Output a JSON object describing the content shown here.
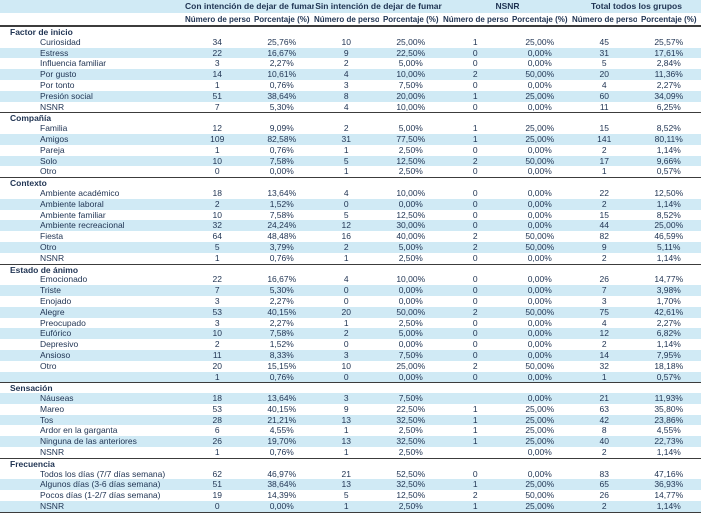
{
  "table": {
    "colors": {
      "band": "#d0eaf5",
      "text": "#1f3352",
      "border": "#3c3c3c"
    },
    "groups": [
      {
        "label": "",
        "span": 1
      },
      {
        "label": "Con intención de dejar de fumar",
        "span": 2
      },
      {
        "label": "Sin intención de dejar de fumar",
        "span": 2
      },
      {
        "label": "NSNR",
        "span": 2
      },
      {
        "label": "Total todos los grupos",
        "span": 2
      }
    ],
    "subheaders": [
      "Número de personas",
      "Porcentaje (%)",
      "Número de personas",
      "Porcentaje (%)",
      "Número de personas",
      "Porcentaje (%)",
      "Número de personas",
      "Porcentaje (%)"
    ],
    "sections": [
      {
        "title": "Factor de inicio",
        "first_row_banded": false,
        "rows": [
          {
            "label": "Curiosidad",
            "values": [
              "34",
              "25,76%",
              "10",
              "25,00%",
              "1",
              "25,00%",
              "45",
              "25,57%"
            ]
          },
          {
            "label": "Estress",
            "values": [
              "22",
              "16,67%",
              "9",
              "22,50%",
              "0",
              "0,00%",
              "31",
              "17,61%"
            ]
          },
          {
            "label": "Influencia familiar",
            "values": [
              "3",
              "2,27%",
              "2",
              "5,00%",
              "0",
              "0,00%",
              "5",
              "2,84%"
            ]
          },
          {
            "label": "Por gusto",
            "values": [
              "14",
              "10,61%",
              "4",
              "10,00%",
              "2",
              "50,00%",
              "20",
              "11,36%"
            ]
          },
          {
            "label": "Por tonto",
            "values": [
              "1",
              "0,76%",
              "3",
              "7,50%",
              "0",
              "0,00%",
              "4",
              "2,27%"
            ]
          },
          {
            "label": "Presión social",
            "values": [
              "51",
              "38,64%",
              "8",
              "20,00%",
              "1",
              "25,00%",
              "60",
              "34,09%"
            ]
          },
          {
            "label": "NSNR",
            "values": [
              "7",
              "5,30%",
              "4",
              "10,00%",
              "0",
              "0,00%",
              "11",
              "6,25%"
            ]
          }
        ]
      },
      {
        "title": "Compañía",
        "first_row_banded": false,
        "rows": [
          {
            "label": "Familia",
            "values": [
              "12",
              "9,09%",
              "2",
              "5,00%",
              "1",
              "25,00%",
              "15",
              "8,52%"
            ]
          },
          {
            "label": "Amigos",
            "values": [
              "109",
              "82,58%",
              "31",
              "77,50%",
              "1",
              "25,00%",
              "141",
              "80,11%"
            ]
          },
          {
            "label": "Pareja",
            "values": [
              "1",
              "0,76%",
              "1",
              "2,50%",
              "0",
              "0,00%",
              "2",
              "1,14%"
            ]
          },
          {
            "label": "Solo",
            "values": [
              "10",
              "7,58%",
              "5",
              "12,50%",
              "2",
              "50,00%",
              "17",
              "9,66%"
            ]
          },
          {
            "label": "Otro",
            "values": [
              "0",
              "0,00%",
              "1",
              "2,50%",
              "0",
              "0,00%",
              "1",
              "0,57%"
            ]
          }
        ]
      },
      {
        "title": "Contexto",
        "first_row_banded": false,
        "rows": [
          {
            "label": "Ambiente académico",
            "values": [
              "18",
              "13,64%",
              "4",
              "10,00%",
              "0",
              "0,00%",
              "22",
              "12,50%"
            ]
          },
          {
            "label": "Ambiente laboral",
            "values": [
              "2",
              "1,52%",
              "0",
              "0,00%",
              "0",
              "0,00%",
              "2",
              "1,14%"
            ]
          },
          {
            "label": "Ambiente familiar",
            "values": [
              "10",
              "7,58%",
              "5",
              "12,50%",
              "0",
              "0,00%",
              "15",
              "8,52%"
            ]
          },
          {
            "label": "Ambiente recreacional",
            "values": [
              "32",
              "24,24%",
              "12",
              "30,00%",
              "0",
              "0,00%",
              "44",
              "25,00%"
            ]
          },
          {
            "label": "Fiesta",
            "values": [
              "64",
              "48,48%",
              "16",
              "40,00%",
              "2",
              "50,00%",
              "82",
              "46,59%"
            ]
          },
          {
            "label": "Otro",
            "values": [
              "5",
              "3,79%",
              "2",
              "5,00%",
              "2",
              "50,00%",
              "9",
              "5,11%"
            ]
          },
          {
            "label": "NSNR",
            "values": [
              "1",
              "0,76%",
              "1",
              "2,50%",
              "0",
              "0,00%",
              "2",
              "1,14%"
            ]
          }
        ]
      },
      {
        "title": "Estado de ánimo",
        "first_row_banded": false,
        "rows": [
          {
            "label": "Emocionado",
            "values": [
              "22",
              "16,67%",
              "4",
              "10,00%",
              "0",
              "0,00%",
              "26",
              "14,77%"
            ]
          },
          {
            "label": "Triste",
            "values": [
              "7",
              "5,30%",
              "0",
              "0,00%",
              "0",
              "0,00%",
              "7",
              "3,98%"
            ]
          },
          {
            "label": "Enojado",
            "values": [
              "3",
              "2,27%",
              "0",
              "0,00%",
              "0",
              "0,00%",
              "3",
              "1,70%"
            ]
          },
          {
            "label": "Alegre",
            "values": [
              "53",
              "40,15%",
              "20",
              "50,00%",
              "2",
              "50,00%",
              "75",
              "42,61%"
            ]
          },
          {
            "label": "Preocupado",
            "values": [
              "3",
              "2,27%",
              "1",
              "2,50%",
              "0",
              "0,00%",
              "4",
              "2,27%"
            ]
          },
          {
            "label": "Eufórico",
            "values": [
              "10",
              "7,58%",
              "2",
              "5,00%",
              "0",
              "0,00%",
              "12",
              "6,82%"
            ]
          },
          {
            "label": "Depresivo",
            "values": [
              "2",
              "1,52%",
              "0",
              "0,00%",
              "0",
              "0,00%",
              "2",
              "1,14%"
            ]
          },
          {
            "label": "Ansioso",
            "values": [
              "11",
              "8,33%",
              "3",
              "7,50%",
              "0",
              "0,00%",
              "14",
              "7,95%"
            ]
          },
          {
            "label": "Otro",
            "values": [
              "20",
              "15,15%",
              "10",
              "25,00%",
              "2",
              "50,00%",
              "32",
              "18,18%"
            ]
          },
          {
            "label": "",
            "values": [
              "1",
              "0,76%",
              "0",
              "0,00%",
              "0",
              "0,00%",
              "1",
              "0,57%"
            ]
          }
        ]
      },
      {
        "title": "Sensación",
        "first_row_banded": true,
        "rows": [
          {
            "label": "Náuseas",
            "values": [
              "18",
              "13,64%",
              "3",
              "7,50%",
              "",
              "0,00%",
              "21",
              "11,93%"
            ]
          },
          {
            "label": "Mareo",
            "values": [
              "53",
              "40,15%",
              "9",
              "22,50%",
              "1",
              "25,00%",
              "63",
              "35,80%"
            ]
          },
          {
            "label": "Tos",
            "values": [
              "28",
              "21,21%",
              "13",
              "32,50%",
              "1",
              "25,00%",
              "42",
              "23,86%"
            ]
          },
          {
            "label": "Ardor en la garganta",
            "values": [
              "6",
              "4,55%",
              "1",
              "2,50%",
              "1",
              "25,00%",
              "8",
              "4,55%"
            ]
          },
          {
            "label": "Ninguna de las anteriores",
            "values": [
              "26",
              "19,70%",
              "13",
              "32,50%",
              "1",
              "25,00%",
              "40",
              "22,73%"
            ]
          },
          {
            "label": "NSNR",
            "values": [
              "1",
              "0,76%",
              "1",
              "2,50%",
              "",
              "0,00%",
              "2",
              "1,14%"
            ]
          }
        ]
      },
      {
        "title": "Frecuencia",
        "first_row_banded": false,
        "rows": [
          {
            "label": "Todos los días (7/7 días semana)",
            "values": [
              "62",
              "46,97%",
              "21",
              "52,50%",
              "0",
              "0,00%",
              "83",
              "47,16%"
            ]
          },
          {
            "label": "Algunos días (3-6 días semana)",
            "values": [
              "51",
              "38,64%",
              "13",
              "32,50%",
              "1",
              "25,00%",
              "65",
              "36,93%"
            ]
          },
          {
            "label": "Pocos días (1-2/7 días semana)",
            "values": [
              "19",
              "14,39%",
              "5",
              "12,50%",
              "2",
              "50,00%",
              "26",
              "14,77%"
            ]
          },
          {
            "label": "NSNR",
            "values": [
              "0",
              "0,00%",
              "1",
              "2,50%",
              "1",
              "25,00%",
              "2",
              "1,14%"
            ]
          }
        ]
      }
    ]
  }
}
